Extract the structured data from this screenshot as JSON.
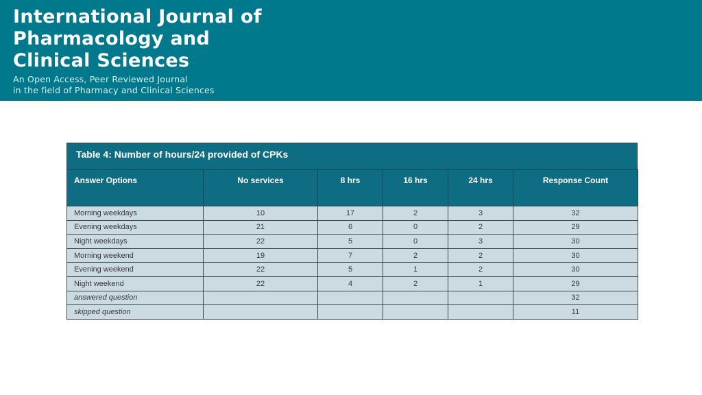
{
  "banner": {
    "title_lines": [
      "International Journal of",
      "Pharmacology and",
      "Clinical Sciences"
    ],
    "subtitle_lines": [
      "An Open Access, Peer Reviewed Journal",
      "in the field of Pharmacy and Clinical Sciences"
    ],
    "background_color": "#00798C",
    "text_color": "#FFFFFF"
  },
  "table": {
    "title": "Table 4: Number of hours/24 provided of CPKs",
    "header_background_color": "#0E6D83",
    "body_background_color": "#CCDBE2",
    "border_color": "#37454C",
    "columns": [
      "Answer Options",
      "No services",
      "8 hrs",
      "16 hrs",
      "24 hrs",
      "Response Count"
    ],
    "rows": [
      {
        "italic": false,
        "cells": [
          "Morning weekdays",
          "10",
          "17",
          "2",
          "3",
          "32"
        ]
      },
      {
        "italic": false,
        "cells": [
          "Evening weekdays",
          "21",
          "6",
          "0",
          "2",
          "29"
        ]
      },
      {
        "italic": false,
        "cells": [
          "Night weekdays",
          "22",
          "5",
          "0",
          "3",
          "30"
        ]
      },
      {
        "italic": false,
        "cells": [
          "Morning weekend",
          "19",
          "7",
          "2",
          "2",
          "30"
        ]
      },
      {
        "italic": false,
        "cells": [
          "Evening weekend",
          "22",
          "5",
          "1",
          "2",
          "30"
        ]
      },
      {
        "italic": false,
        "cells": [
          "Night weekend",
          "22",
          "4",
          "2",
          "1",
          "29"
        ]
      },
      {
        "italic": true,
        "cells": [
          "answered question",
          "",
          "",
          "",
          "",
          "32"
        ]
      },
      {
        "italic": true,
        "cells": [
          "skipped question",
          "",
          "",
          "",
          "",
          "11"
        ]
      }
    ]
  }
}
